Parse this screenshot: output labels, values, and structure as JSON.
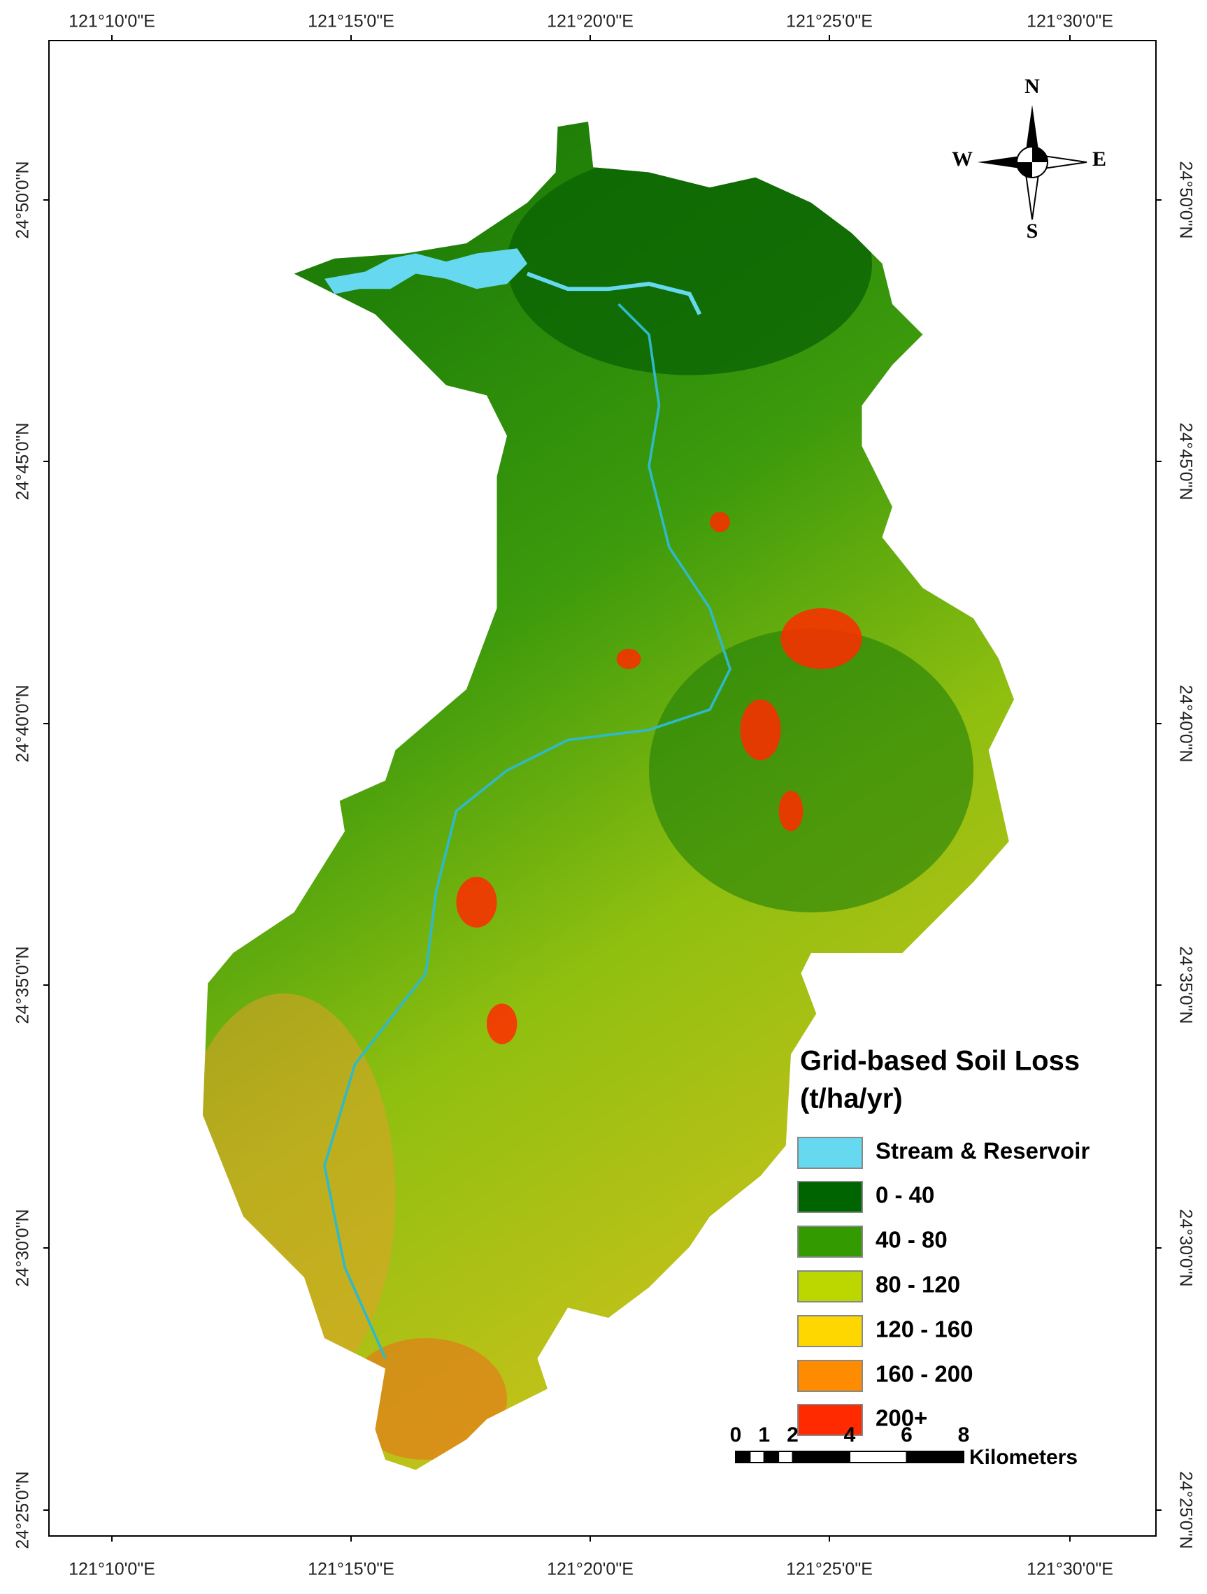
{
  "map": {
    "longitude_labels": [
      "121°10'0\"E",
      "121°15'0\"E",
      "121°20'0\"E",
      "121°25'0\"E",
      "121°30'0\"E"
    ],
    "latitude_labels": [
      "24°50'0\"N",
      "24°45'0\"N",
      "24°40'0\"N",
      "24°35'0\"N",
      "24°30'0\"N",
      "24°25'0\"N"
    ],
    "compass": {
      "n": "N",
      "s": "S",
      "e": "E",
      "w": "W"
    },
    "legend": {
      "title_line1": "Grid-based Soil Loss",
      "title_line2": "(t/ha/yr)",
      "items": [
        {
          "label": "Stream & Reservoir",
          "color": "#66d9f0"
        },
        {
          "label": "0 - 40",
          "color": "#006400"
        },
        {
          "label": "40 - 80",
          "color": "#339a00"
        },
        {
          "label": "80 - 120",
          "color": "#bcd600"
        },
        {
          "label": "120 - 160",
          "color": "#ffd700"
        },
        {
          "label": "160 - 200",
          "color": "#ff8c00"
        },
        {
          "label": "200+",
          "color": "#ff2a00"
        }
      ]
    },
    "scale_bar": {
      "ticks": [
        0,
        1,
        2,
        4,
        6,
        8
      ],
      "unit": "Kilometers"
    }
  }
}
